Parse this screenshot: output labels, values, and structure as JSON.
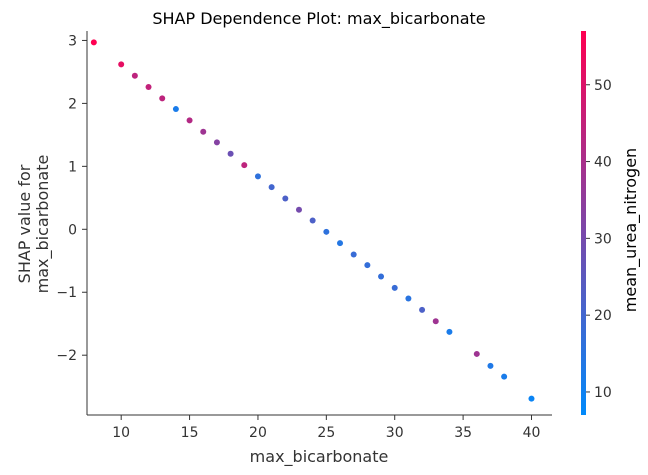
{
  "chart_data": {
    "type": "scatter",
    "title": "SHAP Dependence Plot: max_bicarbonate",
    "xlabel": "max_bicarbonate",
    "ylabel": [
      "SHAP value for",
      "max_bicarbonate"
    ],
    "colorbar_label": "mean_urea_nitrogen",
    "xlim": [
      7.5,
      41.5
    ],
    "ylim": [
      -2.95,
      3.15
    ],
    "x_ticks": [
      10,
      15,
      20,
      25,
      30,
      35,
      40
    ],
    "y_ticks": [
      -2,
      -1,
      0,
      1,
      2,
      3
    ],
    "y_tick_labels": [
      "−2",
      "−1",
      "0",
      "1",
      "2",
      "3"
    ],
    "colorbar_range": [
      7,
      57
    ],
    "colorbar_ticks": [
      10,
      20,
      30,
      40,
      50
    ],
    "colormap": [
      "#008afb",
      "#ff0051"
    ],
    "grid": false,
    "points": [
      {
        "x": 8,
        "y": 2.97,
        "c": 57
      },
      {
        "x": 10,
        "y": 2.62,
        "c": 52
      },
      {
        "x": 11,
        "y": 2.44,
        "c": 44
      },
      {
        "x": 12,
        "y": 2.26,
        "c": 45
      },
      {
        "x": 13,
        "y": 2.08,
        "c": 44
      },
      {
        "x": 14,
        "y": 1.91,
        "c": 12
      },
      {
        "x": 15,
        "y": 1.73,
        "c": 42
      },
      {
        "x": 16,
        "y": 1.55,
        "c": 38
      },
      {
        "x": 17,
        "y": 1.38,
        "c": 33
      },
      {
        "x": 18,
        "y": 1.2,
        "c": 28
      },
      {
        "x": 19,
        "y": 1.02,
        "c": 44
      },
      {
        "x": 20,
        "y": 0.84,
        "c": 16
      },
      {
        "x": 21,
        "y": 0.67,
        "c": 20
      },
      {
        "x": 22,
        "y": 0.49,
        "c": 22
      },
      {
        "x": 23,
        "y": 0.31,
        "c": 30
      },
      {
        "x": 24,
        "y": 0.14,
        "c": 22
      },
      {
        "x": 25,
        "y": -0.04,
        "c": 16
      },
      {
        "x": 26,
        "y": -0.22,
        "c": 14
      },
      {
        "x": 27,
        "y": -0.4,
        "c": 18
      },
      {
        "x": 28,
        "y": -0.57,
        "c": 17
      },
      {
        "x": 29,
        "y": -0.75,
        "c": 17
      },
      {
        "x": 30,
        "y": -0.93,
        "c": 18
      },
      {
        "x": 31,
        "y": -1.1,
        "c": 15
      },
      {
        "x": 32,
        "y": -1.28,
        "c": 22
      },
      {
        "x": 33,
        "y": -1.46,
        "c": 38
      },
      {
        "x": 34,
        "y": -1.63,
        "c": 12
      },
      {
        "x": 36,
        "y": -1.98,
        "c": 38
      },
      {
        "x": 37,
        "y": -2.17,
        "c": 13
      },
      {
        "x": 38,
        "y": -2.34,
        "c": 12
      },
      {
        "x": 40,
        "y": -2.69,
        "c": 9
      }
    ]
  }
}
